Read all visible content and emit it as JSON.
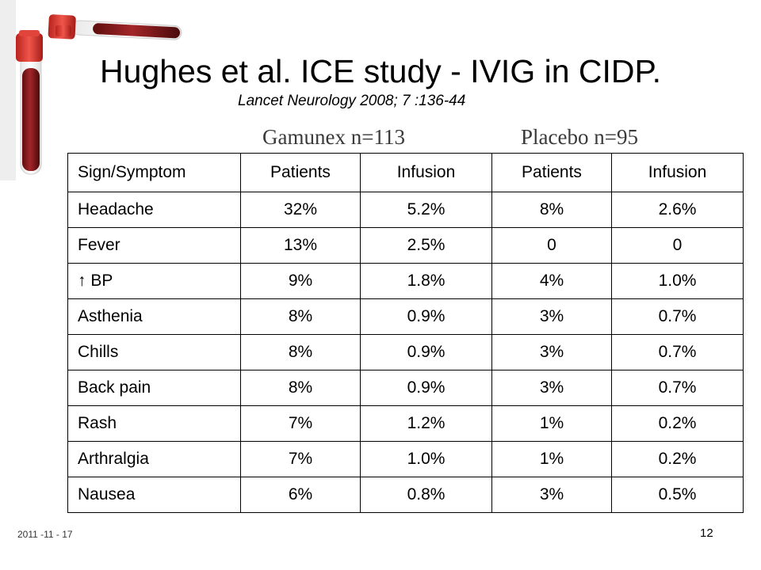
{
  "slide": {
    "title": "Hughes et al. ICE study - IVIG in CIDP.",
    "subtitle": "Lancet Neurology 2008; 7 :136-44",
    "groups": [
      "Gamunex n=113",
      "Placebo n=95"
    ],
    "footer_date": "2011 -11 - 17",
    "page_number": "12"
  },
  "table": {
    "headers": [
      "Sign/Symptom",
      "Patients",
      "Infusion",
      "Patients",
      "Infusion"
    ],
    "rows": [
      [
        "Headache",
        "32%",
        "5.2%",
        "8%",
        "2.6%"
      ],
      [
        "Fever",
        "13%",
        "2.5%",
        "0",
        "0"
      ],
      [
        "↑ BP",
        "9%",
        "1.8%",
        "4%",
        "1.0%"
      ],
      [
        "Asthenia",
        "8%",
        "0.9%",
        "3%",
        "0.7%"
      ],
      [
        "Chills",
        "8%",
        "0.9%",
        "3%",
        "0.7%"
      ],
      [
        "Back pain",
        "8%",
        "0.9%",
        "3%",
        "0.7%"
      ],
      [
        "Rash",
        "7%",
        "1.2%",
        "1%",
        "0.2%"
      ],
      [
        "Arthralgia",
        "7%",
        "1.0%",
        "1%",
        "0.2%"
      ],
      [
        "Nausea",
        "6%",
        "0.8%",
        "3%",
        "0.5%"
      ]
    ]
  },
  "colors": {
    "tube_cap": "#d8342c",
    "blood": "#8e1b1b",
    "text": "#000000"
  },
  "icons": [
    "blood-tubes-illustration"
  ]
}
